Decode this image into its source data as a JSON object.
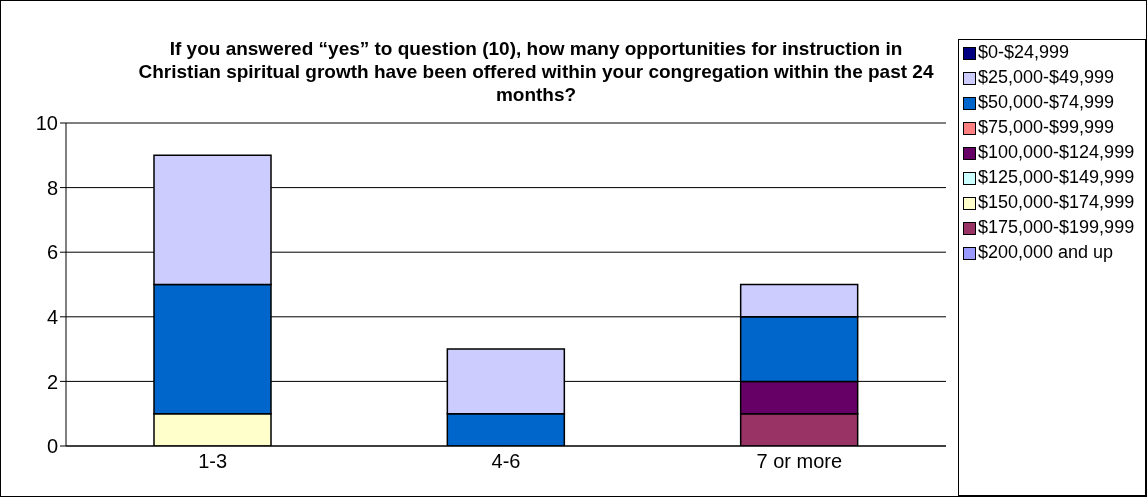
{
  "chart_data": {
    "type": "bar",
    "title": "If you answered “yes” to question (10), how many opportunities for instruction in Christian spiritual growth have been offered within your congregation within the past 24 months?",
    "categories": [
      "1-3",
      "4-6",
      "7 or more"
    ],
    "stacked": true,
    "ylim": [
      0,
      10
    ],
    "yticks": [
      0,
      2,
      4,
      6,
      8,
      10
    ],
    "grid": "y",
    "legend": "right",
    "series": [
      {
        "name": "$200,000 and up",
        "color": "#9999ff",
        "values": [
          0,
          0,
          0
        ]
      },
      {
        "name": "$175,000-$199,999",
        "color": "#993366",
        "values": [
          0,
          0,
          1
        ]
      },
      {
        "name": "$150,000-$174,999",
        "color": "#ffffcc",
        "values": [
          1,
          0,
          0
        ]
      },
      {
        "name": "$125,000-$149,999",
        "color": "#ccffff",
        "values": [
          0,
          0,
          0
        ]
      },
      {
        "name": "$100,000-$124,999",
        "color": "#660066",
        "values": [
          0,
          0,
          1
        ]
      },
      {
        "name": "$75,000-$99,999",
        "color": "#ff8080",
        "values": [
          0,
          0,
          0
        ]
      },
      {
        "name": "$50,000-$74,999",
        "color": "#0066cc",
        "values": [
          4,
          1,
          2
        ]
      },
      {
        "name": "$25,000-$49,999",
        "color": "#ccccff",
        "values": [
          4,
          2,
          1
        ]
      },
      {
        "name": "$0-$24,999",
        "color": "#000080",
        "values": [
          0,
          0,
          0
        ]
      }
    ]
  }
}
